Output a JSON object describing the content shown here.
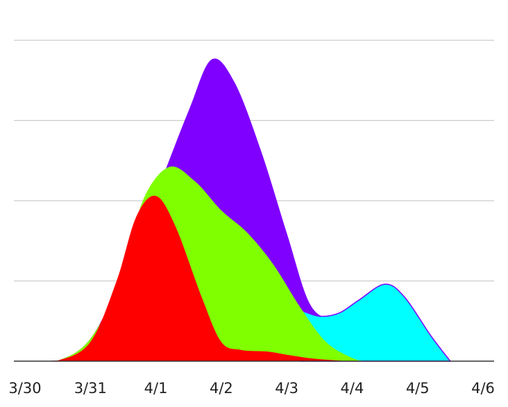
{
  "chart_data": {
    "type": "area",
    "stacked": "overlapping",
    "grid": true,
    "x_ticks": [
      "3/30",
      "3/31",
      "4/1",
      "4/2",
      "4/3",
      "4/4",
      "4/5",
      "4/6"
    ],
    "ylim": [
      0,
      100
    ],
    "y_gridlines": [
      25,
      50,
      75,
      100
    ],
    "series": [
      {
        "color": "#7f00ff",
        "points": [
          [
            0,
            0
          ],
          [
            0.5,
            0.2
          ],
          [
            1,
            7
          ],
          [
            1.5,
            27
          ],
          [
            2,
            52
          ],
          [
            2.5,
            78
          ],
          [
            2.85,
            94
          ],
          [
            3.2,
            87
          ],
          [
            3.6,
            66
          ],
          [
            4,
            40
          ],
          [
            4.35,
            18
          ],
          [
            4.7,
            13
          ],
          [
            5,
            14
          ]
        ]
      },
      {
        "color": "#00ffff",
        "points": [
          [
            4.2,
            16
          ],
          [
            4.5,
            14
          ],
          [
            4.8,
            15
          ],
          [
            5.1,
            19
          ],
          [
            5.5,
            24
          ],
          [
            5.8,
            20
          ],
          [
            6.2,
            8
          ],
          [
            6.5,
            0
          ]
        ]
      },
      {
        "color": "#7fff00",
        "points": [
          [
            0,
            0
          ],
          [
            0.5,
            0.2
          ],
          [
            1,
            7
          ],
          [
            1.5,
            27
          ],
          [
            1.8,
            50
          ],
          [
            2.2,
            60.5
          ],
          [
            2.6,
            56
          ],
          [
            3,
            47
          ],
          [
            3.4,
            40
          ],
          [
            3.8,
            30
          ],
          [
            4.2,
            17
          ],
          [
            4.6,
            6
          ],
          [
            5,
            1
          ],
          [
            5.2,
            0
          ]
        ]
      },
      {
        "color": "#ff0000",
        "points": [
          [
            0,
            0
          ],
          [
            0.5,
            0.2
          ],
          [
            1,
            6
          ],
          [
            1.4,
            25
          ],
          [
            1.7,
            45
          ],
          [
            2,
            51.5
          ],
          [
            2.3,
            42
          ],
          [
            2.7,
            20
          ],
          [
            3,
            6
          ],
          [
            3.3,
            3.5
          ],
          [
            3.7,
            3
          ],
          [
            4,
            2
          ],
          [
            4.4,
            0.8
          ],
          [
            4.8,
            0.2
          ],
          [
            5,
            0
          ]
        ]
      }
    ]
  }
}
